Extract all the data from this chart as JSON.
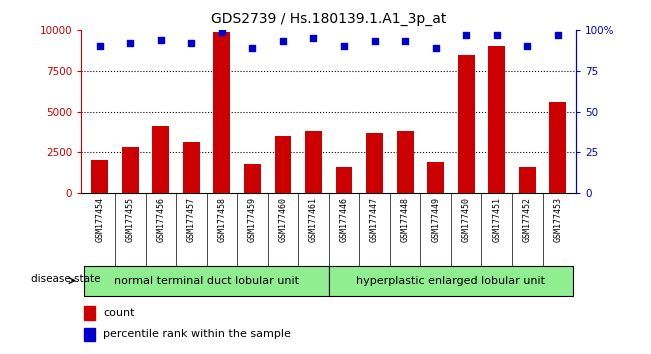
{
  "title": "GDS2739 / Hs.180139.1.A1_3p_at",
  "samples": [
    "GSM177454",
    "GSM177455",
    "GSM177456",
    "GSM177457",
    "GSM177458",
    "GSM177459",
    "GSM177460",
    "GSM177461",
    "GSM177446",
    "GSM177447",
    "GSM177448",
    "GSM177449",
    "GSM177450",
    "GSM177451",
    "GSM177452",
    "GSM177453"
  ],
  "counts": [
    2000,
    2800,
    4100,
    3100,
    9900,
    1800,
    3500,
    3800,
    1600,
    3700,
    3800,
    1900,
    8500,
    9000,
    1600,
    5600
  ],
  "percentiles": [
    90,
    92,
    94,
    92,
    99,
    89,
    93,
    95,
    90,
    93,
    93,
    89,
    97,
    97,
    90,
    97
  ],
  "group1_label": "normal terminal duct lobular unit",
  "group2_label": "hyperplastic enlarged lobular unit",
  "group1_count": 8,
  "group2_count": 8,
  "bar_color": "#cc0000",
  "dot_color": "#0000cc",
  "ylim_left": [
    0,
    10000
  ],
  "ylim_right": [
    0,
    100
  ],
  "yticks_left": [
    0,
    2500,
    5000,
    7500,
    10000
  ],
  "yticks_right": [
    0,
    25,
    50,
    75,
    100
  ],
  "grid_values": [
    2500,
    5000,
    7500
  ],
  "group1_color": "#90ee90",
  "group2_color": "#90ee90",
  "legend_count_label": "count",
  "legend_pct_label": "percentile rank within the sample",
  "disease_state_label": "disease state",
  "background_color": "#ffffff",
  "tick_area_color": "#c0c0c0"
}
